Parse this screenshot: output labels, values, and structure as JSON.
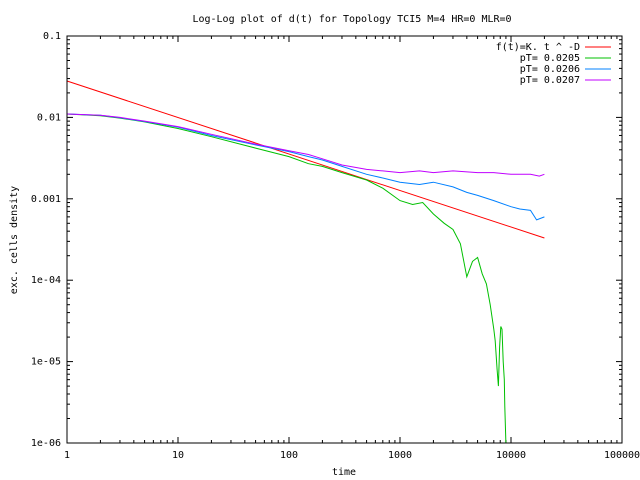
{
  "chart_data": {
    "type": "line",
    "title": "Log-Log plot of d(t) for Topology TCI5 M=4 HR=0 MLR=0",
    "xlabel": "time",
    "ylabel": "exc. cells density",
    "xscale": "log",
    "yscale": "log",
    "xlim": [
      1,
      100000
    ],
    "ylim": [
      1e-06,
      0.1
    ],
    "grid": false,
    "legend_position": "top-right",
    "xticks": [
      {
        "value": 1,
        "label": "1"
      },
      {
        "value": 10,
        "label": "10"
      },
      {
        "value": 100,
        "label": "100"
      },
      {
        "value": 1000,
        "label": "1000"
      },
      {
        "value": 10000,
        "label": "10000"
      },
      {
        "value": 100000,
        "label": "100000"
      }
    ],
    "yticks": [
      {
        "value": 0.1,
        "label": "0.1"
      },
      {
        "value": 0.01,
        "label": "0.01"
      },
      {
        "value": 0.001,
        "label": "0.001"
      },
      {
        "value": 0.0001,
        "label": "1e-04"
      },
      {
        "value": 1e-05,
        "label": "1e-05"
      },
      {
        "value": 1e-06,
        "label": "1e-06"
      }
    ],
    "series": [
      {
        "name": "f(t)=K. t ^ -D",
        "color": "#ff0000",
        "x": [
          1,
          20000
        ],
        "y": [
          0.028,
          0.00033
        ]
      },
      {
        "name": "pT= 0.0205",
        "color": "#00c000",
        "x": [
          1,
          2,
          3,
          5,
          10,
          20,
          50,
          100,
          150,
          200,
          300,
          500,
          700,
          1000,
          1300,
          1600,
          2000,
          2500,
          3000,
          3500,
          4000,
          4500,
          5000,
          5500,
          6000,
          6500,
          7000,
          7200,
          7500,
          7700,
          7900,
          8100,
          8300,
          8500,
          8700,
          8800,
          9000
        ],
        "y": [
          0.011,
          0.0105,
          0.0098,
          0.0088,
          0.0073,
          0.0058,
          0.0042,
          0.0033,
          0.0027,
          0.0025,
          0.0021,
          0.0017,
          0.00135,
          0.00095,
          0.00085,
          0.0009,
          0.00065,
          0.0005,
          0.00042,
          0.00028,
          0.00011,
          0.00017,
          0.00019,
          0.00012,
          9e-05,
          5e-05,
          2.5e-05,
          1.8e-05,
          8e-06,
          5e-06,
          1.5e-05,
          2.7e-05,
          2.5e-05,
          1e-05,
          6e-06,
          2.8e-06,
          1e-06
        ]
      },
      {
        "name": "pT= 0.0206",
        "color": "#0080ff",
        "x": [
          1,
          2,
          3,
          5,
          10,
          20,
          50,
          100,
          150,
          200,
          300,
          500,
          700,
          1000,
          1500,
          2000,
          3000,
          4000,
          5000,
          7000,
          10000,
          12000,
          15000,
          17000,
          20000
        ],
        "y": [
          0.011,
          0.0106,
          0.0099,
          0.0089,
          0.0076,
          0.006,
          0.0046,
          0.0038,
          0.0033,
          0.003,
          0.0025,
          0.002,
          0.0018,
          0.0016,
          0.0015,
          0.0016,
          0.0014,
          0.0012,
          0.0011,
          0.00095,
          0.0008,
          0.00075,
          0.00072,
          0.00055,
          0.0006
        ]
      },
      {
        "name": "pT= 0.0207",
        "color": "#c000ff",
        "x": [
          1,
          2,
          3,
          5,
          10,
          20,
          50,
          100,
          150,
          200,
          300,
          500,
          700,
          1000,
          1500,
          2000,
          3000,
          5000,
          7000,
          10000,
          15000,
          18000,
          20000
        ],
        "y": [
          0.011,
          0.0106,
          0.01,
          0.009,
          0.0077,
          0.0062,
          0.0047,
          0.0039,
          0.0035,
          0.0031,
          0.0026,
          0.0023,
          0.0022,
          0.0021,
          0.0022,
          0.0021,
          0.0022,
          0.0021,
          0.0021,
          0.002,
          0.002,
          0.0019,
          0.002
        ]
      }
    ]
  }
}
